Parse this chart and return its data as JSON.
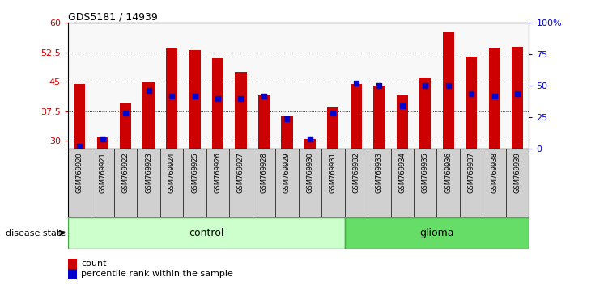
{
  "title": "GDS5181 / 14939",
  "samples": [
    "GSM769920",
    "GSM769921",
    "GSM769922",
    "GSM769923",
    "GSM769924",
    "GSM769925",
    "GSM769926",
    "GSM769927",
    "GSM769928",
    "GSM769929",
    "GSM769930",
    "GSM769931",
    "GSM769932",
    "GSM769933",
    "GSM769934",
    "GSM769935",
    "GSM769936",
    "GSM769937",
    "GSM769938",
    "GSM769939"
  ],
  "counts": [
    44.5,
    31.0,
    39.5,
    45.0,
    53.5,
    53.0,
    51.0,
    47.5,
    41.5,
    36.5,
    30.5,
    38.5,
    44.5,
    44.0,
    41.5,
    46.0,
    57.5,
    51.5,
    53.5,
    54.0
  ],
  "percentiles": [
    2,
    8,
    28,
    46,
    42,
    42,
    40,
    40,
    42,
    24,
    8,
    28,
    52,
    50,
    34,
    50,
    50,
    44,
    42,
    44
  ],
  "ylim_left": [
    28,
    60
  ],
  "ylim_right": [
    0,
    100
  ],
  "yticks_left": [
    30,
    37.5,
    45,
    52.5,
    60
  ],
  "yticks_right": [
    0,
    25,
    50,
    75,
    100
  ],
  "bar_color": "#cc0000",
  "dot_color": "#0000cc",
  "n_control": 12,
  "n_glioma": 8,
  "control_color": "#ccffcc",
  "glioma_color": "#66dd66",
  "control_label": "control",
  "glioma_label": "glioma",
  "disease_state_label": "disease state",
  "legend_count": "count",
  "legend_pct": "percentile rank within the sample",
  "ax_label_color_left": "#cc0000",
  "ax_label_color_right": "#0000cc",
  "plot_bg": "#f8f8f8",
  "xtick_bg": "#d0d0d0"
}
